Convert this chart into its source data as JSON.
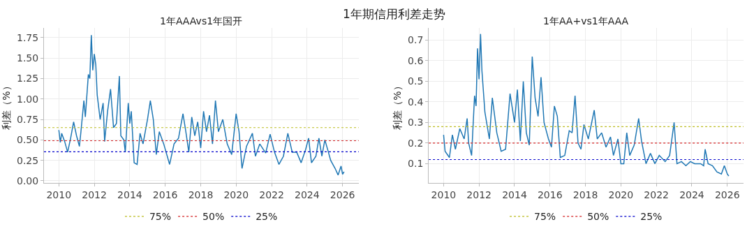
{
  "chart_data": [
    {
      "type": "line",
      "title": "1年AAAvs1年国开",
      "ylabel": "利差（%）",
      "annotations": [
        "1年期信用利差走势"
      ],
      "xlim": [
        "2009-03",
        "2026-12"
      ],
      "xticks": [
        {
          "value": "2010",
          "label": "2010"
        },
        {
          "value": "2012",
          "label": "2012"
        },
        {
          "value": "2014",
          "label": "2014"
        },
        {
          "value": "2016",
          "label": "2016"
        },
        {
          "value": "2018",
          "label": "2018"
        },
        {
          "value": "2020",
          "label": "2020"
        },
        {
          "value": "2022",
          "label": "2022"
        },
        {
          "value": "2024",
          "label": "2024"
        },
        {
          "value": "2026",
          "label": "2026"
        }
      ],
      "ylim": [
        -0.03,
        1.87
      ],
      "yticks": [
        {
          "value": 0,
          "label": "0.00"
        },
        {
          "value": 0.25,
          "label": "0.25"
        },
        {
          "value": 0.5,
          "label": "0.50"
        },
        {
          "value": 0.75,
          "label": "0.75"
        },
        {
          "value": 1,
          "label": "1.00"
        },
        {
          "value": 1.25,
          "label": "1.25"
        },
        {
          "value": 1.5,
          "label": "1.50"
        },
        {
          "value": 1.75,
          "label": "1.75"
        }
      ],
      "grid": true,
      "legend": "bottom",
      "x": [
        "2010-01",
        "2010-02",
        "2010-03",
        "2010-05",
        "2010-07",
        "2010-09",
        "2010-11",
        "2011-01",
        "2011-03",
        "2011-04",
        "2011-06",
        "2011-07",
        "2011-09",
        "2011-10",
        "2011-11",
        "2011-12",
        "2012-01",
        "2012-02",
        "2012-03",
        "2012-05",
        "2012-07",
        "2012-08",
        "2012-10",
        "2012-12",
        "2013-02",
        "2013-04",
        "2013-06",
        "2013-07",
        "2013-09",
        "2013-10",
        "2013-12",
        "2014-01",
        "2014-02",
        "2014-04",
        "2014-06",
        "2014-08",
        "2014-10",
        "2015-01",
        "2015-03",
        "2015-05",
        "2015-07",
        "2015-09",
        "2015-12",
        "2016-04",
        "2016-07",
        "2016-10",
        "2017-01",
        "2017-03",
        "2017-05",
        "2017-07",
        "2017-09",
        "2017-11",
        "2018-01",
        "2018-03",
        "2018-05",
        "2018-07",
        "2018-09",
        "2018-11",
        "2019-01",
        "2019-04",
        "2019-07",
        "2019-10",
        "2020-01",
        "2020-03",
        "2020-05",
        "2020-08",
        "2020-12",
        "2021-02",
        "2021-05",
        "2021-09",
        "2021-12",
        "2022-03",
        "2022-06",
        "2022-09",
        "2022-12",
        "2023-03",
        "2023-06",
        "2023-09",
        "2023-12",
        "2024-02",
        "2024-04",
        "2024-07",
        "2024-09",
        "2024-11",
        "2025-01",
        "2025-03",
        "2025-05",
        "2025-08",
        "2025-10",
        "2025-12",
        "2026-01",
        "2026-02"
      ],
      "series": [
        {
          "color": "#1f77b4",
          "values": [
            0.62,
            0.47,
            0.58,
            0.48,
            0.35,
            0.52,
            0.72,
            0.55,
            0.42,
            0.6,
            0.98,
            0.78,
            1.3,
            1.25,
            1.78,
            1.35,
            1.55,
            1.42,
            1.05,
            0.75,
            0.95,
            0.48,
            0.85,
            1.12,
            0.65,
            0.7,
            1.28,
            0.55,
            0.5,
            0.35,
            0.95,
            0.7,
            0.85,
            0.22,
            0.2,
            0.58,
            0.45,
            0.75,
            0.98,
            0.75,
            0.32,
            0.6,
            0.45,
            0.2,
            0.45,
            0.52,
            0.82,
            0.6,
            0.35,
            0.78,
            0.55,
            0.72,
            0.4,
            0.85,
            0.6,
            0.8,
            0.45,
            0.98,
            0.6,
            0.75,
            0.45,
            0.32,
            0.82,
            0.6,
            0.15,
            0.42,
            0.58,
            0.3,
            0.45,
            0.34,
            0.57,
            0.35,
            0.2,
            0.3,
            0.58,
            0.35,
            0.35,
            0.22,
            0.38,
            0.52,
            0.22,
            0.3,
            0.52,
            0.3,
            0.5,
            0.38,
            0.25,
            0.15,
            0.07,
            0.18,
            0.08,
            0.11
          ]
        },
        {
          "name": "75%",
          "color": "#bcbd22",
          "line_style": "dotted",
          "x": [
            "2009-03",
            "2026-12"
          ],
          "values": [
            0.65,
            0.65
          ]
        },
        {
          "name": "50%",
          "color": "#d62728",
          "line_style": "dotted",
          "x": [
            "2009-03",
            "2026-12"
          ],
          "values": [
            0.49,
            0.49
          ]
        },
        {
          "name": "25%",
          "color": "#0000cc",
          "line_style": "dotted",
          "x": [
            "2009-03",
            "2026-12"
          ],
          "values": [
            0.355,
            0.355
          ]
        }
      ]
    },
    {
      "type": "line",
      "title": "1年AA+vs1年AAA",
      "ylabel": "利差（%）",
      "xlim": [
        "2009-03",
        "2026-12"
      ],
      "xticks": [
        {
          "value": "2010",
          "label": "2010"
        },
        {
          "value": "2012",
          "label": "2012"
        },
        {
          "value": "2014",
          "label": "2014"
        },
        {
          "value": "2016",
          "label": "2016"
        },
        {
          "value": "2018",
          "label": "2018"
        },
        {
          "value": "2020",
          "label": "2020"
        },
        {
          "value": "2022",
          "label": "2022"
        },
        {
          "value": "2024",
          "label": "2024"
        },
        {
          "value": "2026",
          "label": "2026"
        }
      ],
      "ylim": [
        0.005,
        0.76
      ],
      "yticks": [
        0.1,
        0.2,
        0.3,
        0.4,
        0.5,
        0.6,
        0.7
      ],
      "grid": true,
      "legend": "bottom",
      "x": [
        "2010-01",
        "2010-02",
        "2010-05",
        "2010-07",
        "2010-09",
        "2010-12",
        "2011-03",
        "2011-05",
        "2011-06",
        "2011-08",
        "2011-10",
        "2011-11",
        "2011-12",
        "2012-01",
        "2012-02",
        "2012-03",
        "2012-05",
        "2012-08",
        "2012-10",
        "2013-01",
        "2013-04",
        "2013-07",
        "2013-10",
        "2014-01",
        "2014-03",
        "2014-05",
        "2014-07",
        "2014-09",
        "2014-11",
        "2015-01",
        "2015-03",
        "2015-05",
        "2015-07",
        "2015-09",
        "2015-12",
        "2016-02",
        "2016-04",
        "2016-06",
        "2016-08",
        "2016-11",
        "2017-02",
        "2017-04",
        "2017-06",
        "2017-08",
        "2017-10",
        "2017-12",
        "2018-03",
        "2018-07",
        "2018-09",
        "2018-12",
        "2019-03",
        "2019-06",
        "2019-08",
        "2019-11",
        "2020-01",
        "2020-03",
        "2020-05",
        "2020-07",
        "2020-10",
        "2021-01",
        "2021-03",
        "2021-06",
        "2021-09",
        "2021-12",
        "2022-03",
        "2022-07",
        "2022-10",
        "2023-01",
        "2023-03",
        "2023-06",
        "2023-09",
        "2023-12",
        "2024-03",
        "2024-07",
        "2024-09",
        "2024-10",
        "2024-12",
        "2025-03",
        "2025-06",
        "2025-09",
        "2025-11",
        "2026-01",
        "2026-02"
      ],
      "series": [
        {
          "color": "#1f77b4",
          "values": [
            0.24,
            0.16,
            0.13,
            0.24,
            0.17,
            0.27,
            0.22,
            0.32,
            0.2,
            0.14,
            0.43,
            0.38,
            0.66,
            0.51,
            0.73,
            0.55,
            0.35,
            0.22,
            0.42,
            0.25,
            0.16,
            0.17,
            0.44,
            0.3,
            0.46,
            0.21,
            0.5,
            0.25,
            0.19,
            0.62,
            0.42,
            0.33,
            0.52,
            0.3,
            0.22,
            0.18,
            0.38,
            0.33,
            0.13,
            0.14,
            0.26,
            0.25,
            0.43,
            0.2,
            0.17,
            0.29,
            0.22,
            0.36,
            0.22,
            0.25,
            0.18,
            0.23,
            0.14,
            0.22,
            0.1,
            0.1,
            0.25,
            0.14,
            0.19,
            0.32,
            0.21,
            0.1,
            0.15,
            0.1,
            0.14,
            0.11,
            0.14,
            0.3,
            0.1,
            0.11,
            0.09,
            0.11,
            0.1,
            0.1,
            0.09,
            0.17,
            0.1,
            0.09,
            0.06,
            0.05,
            0.09,
            0.05,
            0.04
          ]
        },
        {
          "name": "75%",
          "color": "#bcbd22",
          "line_style": "dotted",
          "x": [
            "2009-03",
            "2026-12"
          ],
          "values": [
            0.28,
            0.28
          ]
        },
        {
          "name": "50%",
          "color": "#d62728",
          "line_style": "dotted",
          "x": [
            "2009-03",
            "2026-12"
          ],
          "values": [
            0.2,
            0.2
          ]
        },
        {
          "name": "25%",
          "color": "#0000cc",
          "line_style": "dotted",
          "x": [
            "2009-03",
            "2026-12"
          ],
          "values": [
            0.12,
            0.12
          ]
        }
      ]
    }
  ]
}
